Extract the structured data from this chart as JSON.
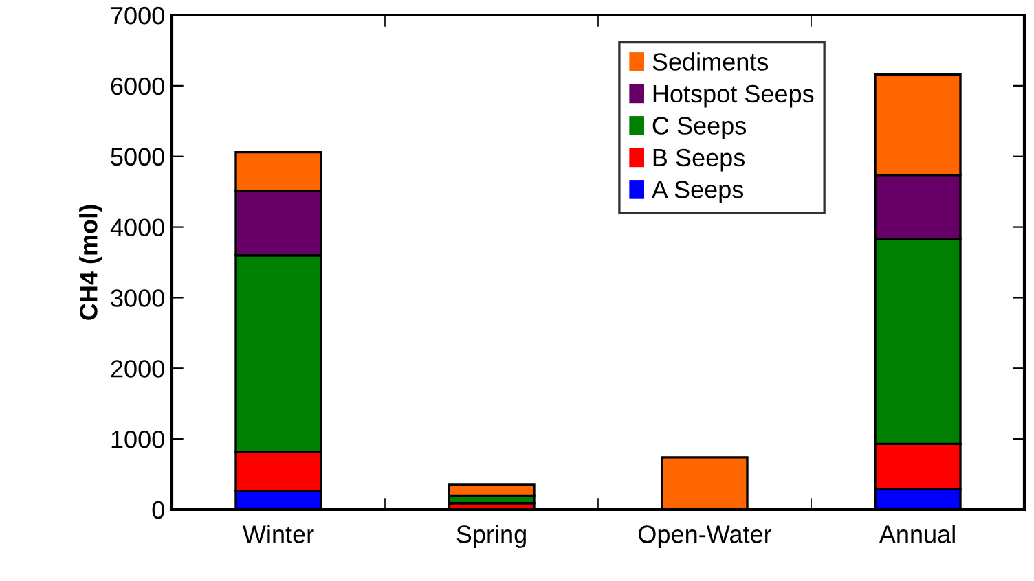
{
  "chart_data": {
    "type": "bar",
    "stacked": true,
    "ylabel": "CH4 (mol)",
    "categories": [
      "Winter",
      "Spring",
      "Open-Water",
      "Annual"
    ],
    "series": [
      {
        "name": "A Seeps",
        "color": "#0000ff",
        "values": [
          260,
          null,
          0,
          290
        ]
      },
      {
        "name": "B Seeps",
        "color": "#ff0000",
        "values": [
          560,
          90,
          0,
          640
        ]
      },
      {
        "name": "C Seeps",
        "color": "#008000",
        "values": [
          2780,
          100,
          0,
          2900
        ]
      },
      {
        "name": "Hotspot Seeps",
        "color": "#660066",
        "values": [
          910,
          0,
          0,
          900
        ]
      },
      {
        "name": "Sediments",
        "color": "#ff6600",
        "values": [
          550,
          160,
          740,
          1430
        ]
      }
    ],
    "ylim": [
      0,
      7000
    ],
    "yticks": [
      0,
      1000,
      2000,
      3000,
      4000,
      5000,
      6000,
      7000
    ],
    "grid": false,
    "legend": "top right"
  }
}
